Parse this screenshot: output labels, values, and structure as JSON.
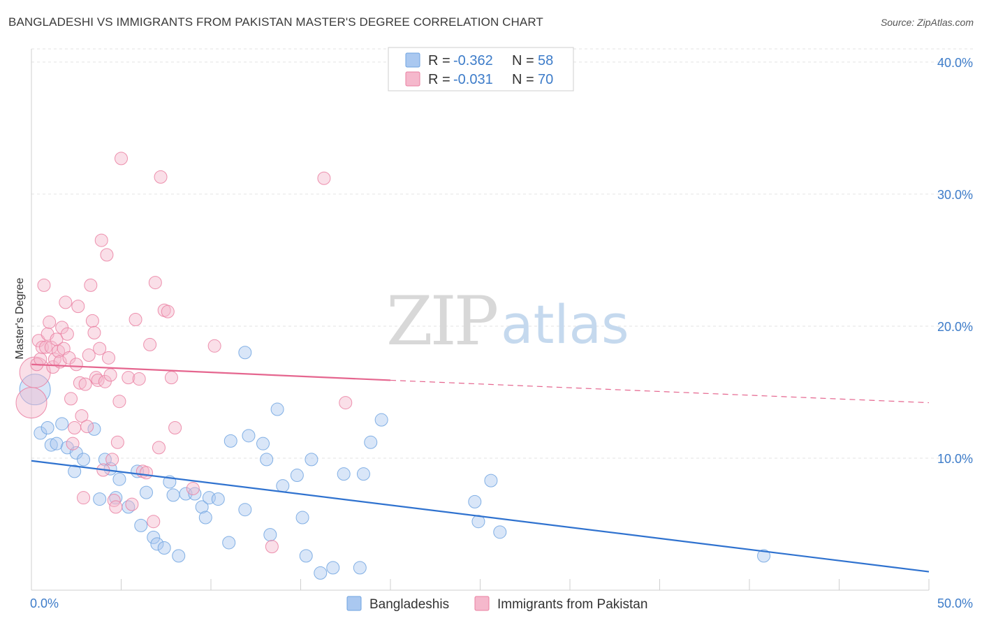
{
  "header": {
    "title": "BANGLADESHI VS IMMIGRANTS FROM PAKISTAN MASTER'S DEGREE CORRELATION CHART",
    "source": "Source: ZipAtlas.com"
  },
  "watermark": {
    "zip": "ZIP",
    "atlas": "atlas"
  },
  "legend": {
    "r_label": "R =",
    "n_label": "N =",
    "rows": [
      {
        "r": "-0.362",
        "n": "58",
        "color": "#aac8f0"
      },
      {
        "r": "-0.031",
        "n": "70",
        "color": "#f5b8cc"
      }
    ]
  },
  "bottom_legend": [
    "Bangladeshis",
    "Immigrants from Pakistan"
  ],
  "chart_data": {
    "type": "scatter",
    "title": "BANGLADESHI VS IMMIGRANTS FROM PAKISTAN MASTER'S DEGREE CORRELATION CHART",
    "xlabel": "",
    "ylabel": "Master's Degree",
    "xlim": [
      0,
      50
    ],
    "ylim": [
      0,
      41
    ],
    "x_tick_labels": [
      "0.0%",
      "50.0%"
    ],
    "y_ticks": [
      10,
      20,
      30,
      40
    ],
    "y_tick_labels": [
      "10.0%",
      "20.0%",
      "30.0%",
      "40.0%"
    ],
    "grid": "horizontal dashed",
    "legend_position": "top-center",
    "series": [
      {
        "name": "Bangladeshis",
        "color": "#6fa3e0",
        "fill": "#aac8f0",
        "trend": {
          "x": [
            0,
            50
          ],
          "y": [
            9.8,
            1.4
          ],
          "style": "solid"
        },
        "points": [
          [
            0.2,
            15.2
          ],
          [
            0.5,
            11.9
          ],
          [
            0.9,
            12.3
          ],
          [
            1.1,
            11.0
          ],
          [
            1.4,
            11.1
          ],
          [
            1.7,
            12.6
          ],
          [
            2.0,
            10.8
          ],
          [
            2.5,
            10.4
          ],
          [
            2.4,
            9.0
          ],
          [
            2.9,
            9.9
          ],
          [
            3.5,
            12.2
          ],
          [
            3.8,
            6.9
          ],
          [
            4.1,
            9.9
          ],
          [
            4.4,
            9.2
          ],
          [
            4.7,
            7.0
          ],
          [
            4.9,
            8.4
          ],
          [
            5.4,
            6.3
          ],
          [
            5.9,
            9.0
          ],
          [
            6.1,
            4.9
          ],
          [
            6.4,
            7.4
          ],
          [
            6.8,
            4.0
          ],
          [
            7.0,
            3.5
          ],
          [
            7.4,
            3.2
          ],
          [
            7.7,
            8.2
          ],
          [
            7.9,
            7.2
          ],
          [
            8.2,
            2.6
          ],
          [
            8.6,
            7.3
          ],
          [
            9.1,
            7.3
          ],
          [
            9.5,
            6.3
          ],
          [
            9.7,
            5.5
          ],
          [
            9.9,
            7.0
          ],
          [
            10.4,
            6.9
          ],
          [
            11.0,
            3.6
          ],
          [
            11.1,
            11.3
          ],
          [
            11.9,
            18.0
          ],
          [
            11.9,
            6.1
          ],
          [
            12.1,
            11.7
          ],
          [
            12.9,
            11.1
          ],
          [
            13.1,
            9.9
          ],
          [
            13.3,
            4.2
          ],
          [
            13.7,
            13.7
          ],
          [
            14.0,
            7.9
          ],
          [
            14.8,
            8.7
          ],
          [
            15.1,
            5.5
          ],
          [
            15.3,
            2.6
          ],
          [
            15.6,
            9.9
          ],
          [
            16.1,
            1.3
          ],
          [
            16.8,
            1.7
          ],
          [
            17.4,
            8.8
          ],
          [
            18.3,
            1.7
          ],
          [
            18.5,
            8.8
          ],
          [
            18.9,
            11.2
          ],
          [
            19.5,
            12.9
          ],
          [
            24.7,
            6.7
          ],
          [
            24.9,
            5.2
          ],
          [
            25.6,
            8.3
          ],
          [
            26.1,
            4.4
          ],
          [
            40.8,
            2.6
          ]
        ]
      },
      {
        "name": "Immigrants from Pakistan",
        "color": "#ea7fa1",
        "fill": "#f5b8cc",
        "trend": {
          "x": [
            0,
            20,
            50
          ],
          "y": [
            17.1,
            15.9,
            14.2
          ],
          "style": "solid-then-dashed"
        },
        "points": [
          [
            0.0,
            14.2
          ],
          [
            0.2,
            16.5
          ],
          [
            0.3,
            17.1
          ],
          [
            0.4,
            18.9
          ],
          [
            0.5,
            17.5
          ],
          [
            0.6,
            18.4
          ],
          [
            0.7,
            23.1
          ],
          [
            0.8,
            18.4
          ],
          [
            0.9,
            19.4
          ],
          [
            1.0,
            20.3
          ],
          [
            1.1,
            18.4
          ],
          [
            1.2,
            16.9
          ],
          [
            1.3,
            17.5
          ],
          [
            1.4,
            19.0
          ],
          [
            1.5,
            18.1
          ],
          [
            1.6,
            17.3
          ],
          [
            1.7,
            19.9
          ],
          [
            1.8,
            18.3
          ],
          [
            1.9,
            21.8
          ],
          [
            2.0,
            19.4
          ],
          [
            2.1,
            17.6
          ],
          [
            2.2,
            14.5
          ],
          [
            2.3,
            11.1
          ],
          [
            2.4,
            12.3
          ],
          [
            2.5,
            17.1
          ],
          [
            2.6,
            21.5
          ],
          [
            2.7,
            15.7
          ],
          [
            2.8,
            13.2
          ],
          [
            2.9,
            7.0
          ],
          [
            3.0,
            15.6
          ],
          [
            3.1,
            12.4
          ],
          [
            3.2,
            17.8
          ],
          [
            3.3,
            23.1
          ],
          [
            3.4,
            20.4
          ],
          [
            3.5,
            19.5
          ],
          [
            3.6,
            16.1
          ],
          [
            3.7,
            15.9
          ],
          [
            3.8,
            18.3
          ],
          [
            3.9,
            26.5
          ],
          [
            4.0,
            9.1
          ],
          [
            4.1,
            15.8
          ],
          [
            4.2,
            25.4
          ],
          [
            4.3,
            17.6
          ],
          [
            4.4,
            16.3
          ],
          [
            4.5,
            9.9
          ],
          [
            4.6,
            6.8
          ],
          [
            4.7,
            6.3
          ],
          [
            4.8,
            11.2
          ],
          [
            4.9,
            14.3
          ],
          [
            5.0,
            32.7
          ],
          [
            5.4,
            16.1
          ],
          [
            5.6,
            6.5
          ],
          [
            5.8,
            20.5
          ],
          [
            6.0,
            16.0
          ],
          [
            6.2,
            9.0
          ],
          [
            6.4,
            8.9
          ],
          [
            6.6,
            18.6
          ],
          [
            6.8,
            5.2
          ],
          [
            6.9,
            23.3
          ],
          [
            7.1,
            10.8
          ],
          [
            7.2,
            31.3
          ],
          [
            7.4,
            21.2
          ],
          [
            7.6,
            21.1
          ],
          [
            7.8,
            16.1
          ],
          [
            8.0,
            12.3
          ],
          [
            9.0,
            7.7
          ],
          [
            10.2,
            18.5
          ],
          [
            13.4,
            3.3
          ],
          [
            16.3,
            31.2
          ],
          [
            17.5,
            14.2
          ]
        ]
      }
    ]
  }
}
